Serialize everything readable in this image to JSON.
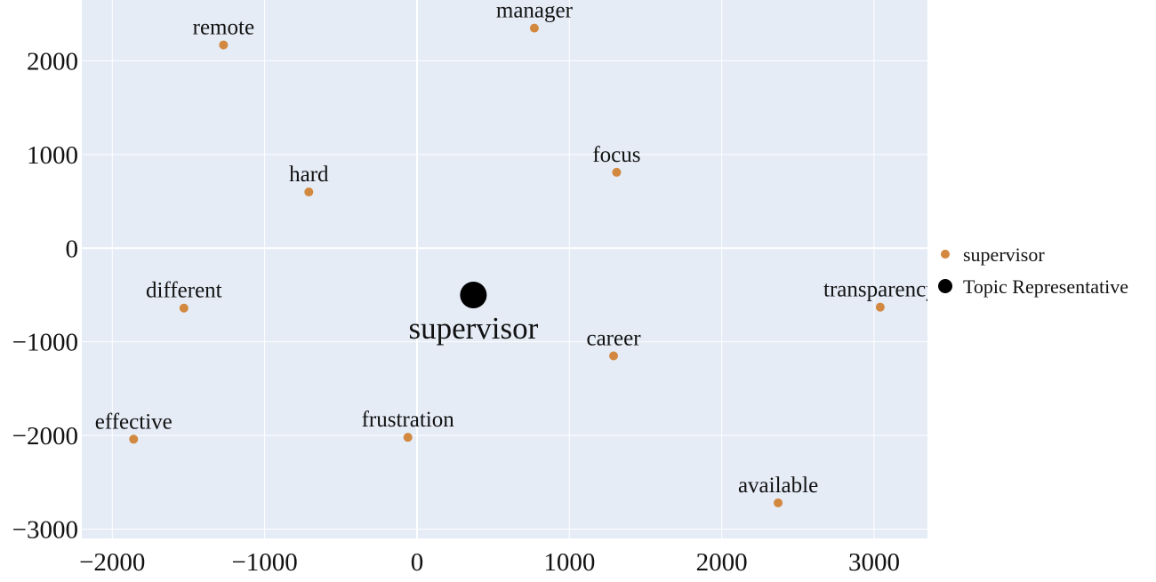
{
  "colors": {
    "plot_background": "#E5ECF6",
    "grid": "#FFFFFF",
    "keyword_marker": "#D3883F",
    "representative_marker": "#000000",
    "text": "#111111"
  },
  "chart_data": {
    "type": "scatter",
    "title": "",
    "xlabel": "",
    "ylabel": "",
    "xlim": [
      -2200,
      3350
    ],
    "ylim": [
      -3100,
      2650
    ],
    "xticks": [
      -2000,
      -1000,
      0,
      1000,
      2000,
      3000
    ],
    "yticks": [
      -3000,
      -2000,
      -1000,
      0,
      1000,
      2000
    ],
    "xtick_labels": [
      "−2000",
      "−1000",
      "0",
      "1000",
      "2000",
      "3000"
    ],
    "ytick_labels": [
      "−3000",
      "−2000",
      "−1000",
      "0",
      "1000",
      "2000"
    ],
    "grid": true,
    "legend_position": "right",
    "series": [
      {
        "name": "supervisor",
        "color": "#D3883F",
        "points": [
          {
            "label": "remote",
            "x": -1270,
            "y": 2170
          },
          {
            "label": "manager",
            "x": 770,
            "y": 2350
          },
          {
            "label": "hard",
            "x": -710,
            "y": 600
          },
          {
            "label": "focus",
            "x": 1310,
            "y": 810
          },
          {
            "label": "different",
            "x": -1530,
            "y": -640
          },
          {
            "label": "transparency",
            "x": 3040,
            "y": -630
          },
          {
            "label": "career",
            "x": 1290,
            "y": -1150
          },
          {
            "label": "effective",
            "x": -1860,
            "y": -2040
          },
          {
            "label": "frustration",
            "x": -60,
            "y": -2020
          },
          {
            "label": "available",
            "x": 2370,
            "y": -2720
          }
        ]
      },
      {
        "name": "Topic Representative",
        "color": "#000000",
        "points": [
          {
            "label": "supervisor",
            "x": 370,
            "y": -500
          }
        ]
      }
    ]
  }
}
